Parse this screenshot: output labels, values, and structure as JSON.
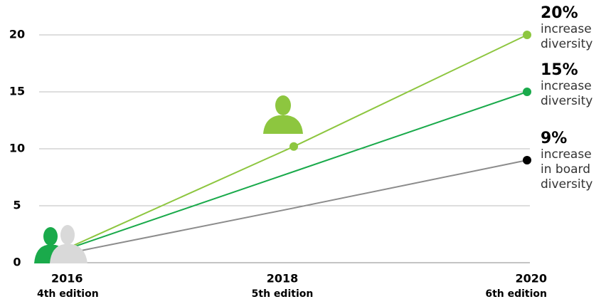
{
  "chart_data": {
    "type": "line",
    "x": [
      2016,
      2018,
      2020
    ],
    "xlim": [
      2016,
      2020
    ],
    "xticks": [
      2016,
      2018,
      2020
    ],
    "xtick_sublabels": [
      "4th edition",
      "5th edition",
      "6th edition"
    ],
    "ylim": [
      0,
      20
    ],
    "yticks": [
      0,
      5,
      10,
      15,
      20
    ],
    "grid": true,
    "series": [
      {
        "color": "#8dc63f",
        "values": [
          1,
          10.2,
          20
        ],
        "markers": [
          1,
          2
        ],
        "marker_color": "#8dc63f",
        "value_labels": [
          null,
          null,
          "20%"
        ],
        "annotation": [
          "increase",
          "diversity"
        ]
      },
      {
        "color": "#1aaa4b",
        "values": [
          1,
          8,
          15
        ],
        "markers": [
          2
        ],
        "marker_color": "#1aaa4b",
        "value_labels": [
          null,
          null,
          "15%"
        ],
        "annotation": [
          "increase",
          "diversity"
        ]
      },
      {
        "color": "#8c8c8c",
        "values": [
          0.7,
          4.8,
          9
        ],
        "markers": [
          2
        ],
        "marker_color": "#000000",
        "value_labels": [
          null,
          null,
          "9%"
        ],
        "annotation": [
          "increase",
          "in board",
          "diversity"
        ]
      }
    ]
  }
}
